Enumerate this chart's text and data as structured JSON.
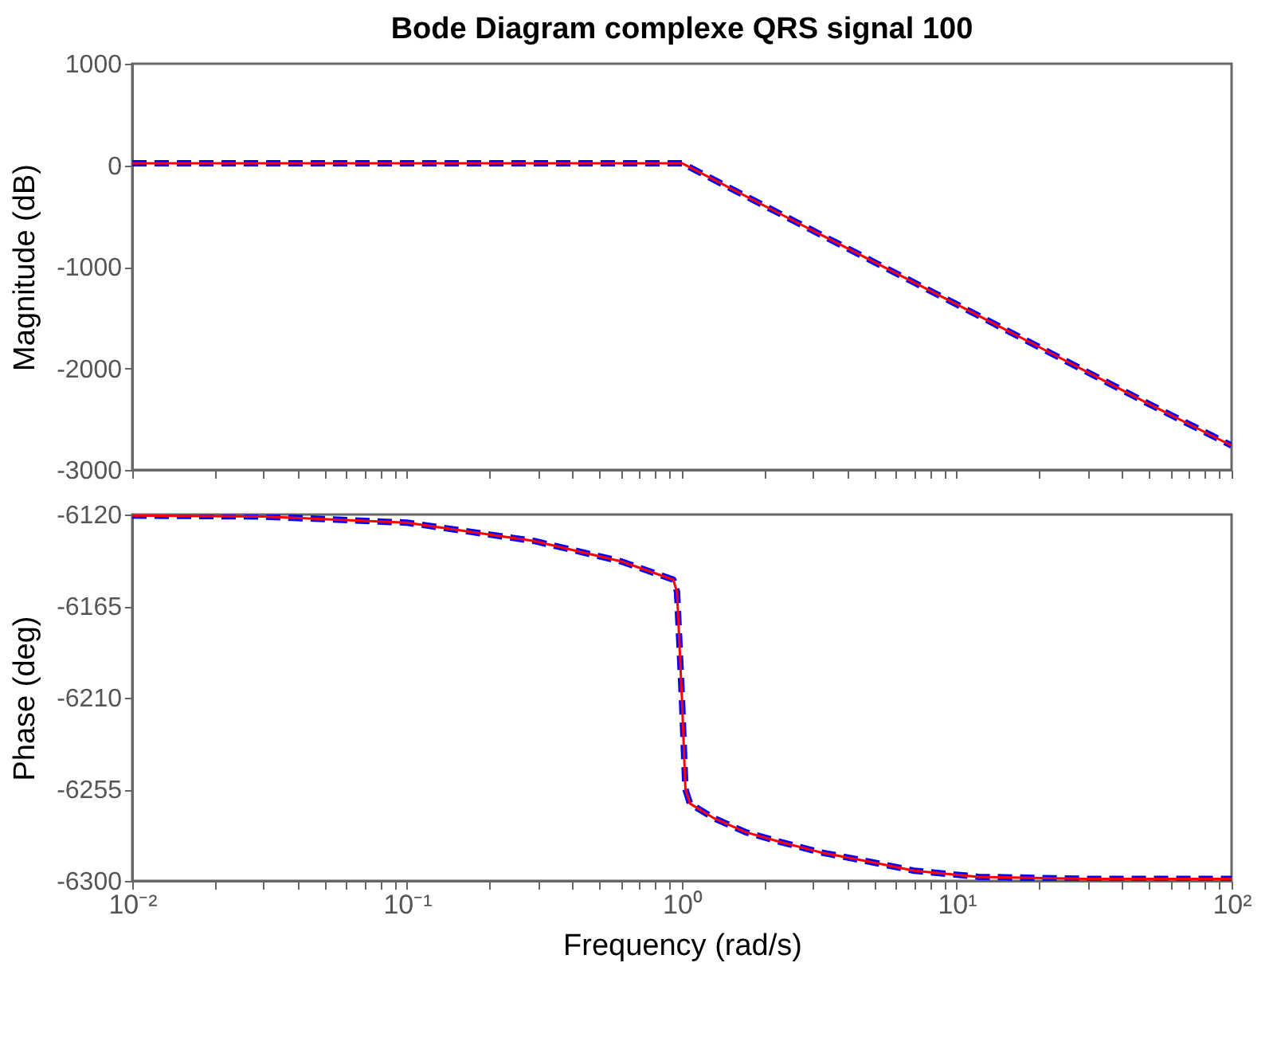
{
  "chart_data": [
    {
      "type": "line",
      "title": "Bode Diagram complexe QRS signal 100",
      "ylabel": "Magnitude (dB)",
      "log": "x",
      "tick_labels": "y",
      "xlim": [
        0.01,
        100
      ],
      "ylim": [
        -3000,
        1000
      ],
      "yticks": [
        -3000,
        -2000,
        -1000,
        0,
        1000
      ],
      "xticks": [
        {
          "value": 0.01,
          "label": null
        },
        {
          "value": 0.02,
          "label": null
        },
        {
          "value": 0.03,
          "label": null
        },
        {
          "value": 0.04,
          "label": null
        },
        {
          "value": 0.05,
          "label": null
        },
        {
          "value": 0.06,
          "label": null
        },
        {
          "value": 0.07,
          "label": null
        },
        {
          "value": 0.08,
          "label": null
        },
        {
          "value": 0.09,
          "label": null
        },
        {
          "value": 0.1,
          "label": null
        },
        {
          "value": 0.2,
          "label": null
        },
        {
          "value": 0.3,
          "label": null
        },
        {
          "value": 0.4,
          "label": null
        },
        {
          "value": 0.5,
          "label": null
        },
        {
          "value": 0.6,
          "label": null
        },
        {
          "value": 0.7,
          "label": null
        },
        {
          "value": 0.8,
          "label": null
        },
        {
          "value": 0.9,
          "label": null
        },
        {
          "value": 1,
          "label": null
        },
        {
          "value": 2,
          "label": null
        },
        {
          "value": 3,
          "label": null
        },
        {
          "value": 4,
          "label": null
        },
        {
          "value": 5,
          "label": null
        },
        {
          "value": 6,
          "label": null
        },
        {
          "value": 7,
          "label": null
        },
        {
          "value": 8,
          "label": null
        },
        {
          "value": 9,
          "label": null
        },
        {
          "value": 10,
          "label": null
        },
        {
          "value": 20,
          "label": null
        },
        {
          "value": 30,
          "label": null
        },
        {
          "value": 40,
          "label": null
        },
        {
          "value": 50,
          "label": null
        },
        {
          "value": 60,
          "label": null
        },
        {
          "value": 70,
          "label": null
        },
        {
          "value": 80,
          "label": null
        },
        {
          "value": 90,
          "label": null
        },
        {
          "value": 100,
          "label": null
        }
      ],
      "x": [
        0.01,
        0.1,
        0.5,
        1,
        2,
        10,
        50,
        100
      ],
      "series": [
        {
          "color": "#0000ff",
          "line_style": "dashed",
          "values": [
            20,
            20,
            20,
            20,
            -400,
            -1370,
            -2350,
            -2760
          ]
        },
        {
          "color": "#ff0000",
          "line_style": "solid",
          "values": [
            20,
            20,
            20,
            20,
            -400,
            -1370,
            -2350,
            -2760
          ]
        }
      ]
    },
    {
      "type": "line",
      "xlabel": "Frequency  (rad/s)",
      "ylabel": "Phase (deg)",
      "log": "x",
      "xlim": [
        0.01,
        100
      ],
      "ylim": [
        -6300,
        -6120
      ],
      "yticks": [
        -6300,
        -6255,
        -6210,
        -6165,
        -6120
      ],
      "xticks": [
        {
          "value": 0.01,
          "label": "10⁻²"
        },
        {
          "value": 0.02,
          "label": null
        },
        {
          "value": 0.03,
          "label": null
        },
        {
          "value": 0.04,
          "label": null
        },
        {
          "value": 0.05,
          "label": null
        },
        {
          "value": 0.06,
          "label": null
        },
        {
          "value": 0.07,
          "label": null
        },
        {
          "value": 0.08,
          "label": null
        },
        {
          "value": 0.09,
          "label": null
        },
        {
          "value": 0.1,
          "label": "10⁻¹"
        },
        {
          "value": 0.2,
          "label": null
        },
        {
          "value": 0.3,
          "label": null
        },
        {
          "value": 0.4,
          "label": null
        },
        {
          "value": 0.5,
          "label": null
        },
        {
          "value": 0.6,
          "label": null
        },
        {
          "value": 0.7,
          "label": null
        },
        {
          "value": 0.8,
          "label": null
        },
        {
          "value": 0.9,
          "label": null
        },
        {
          "value": 1,
          "label": "10⁰"
        },
        {
          "value": 2,
          "label": null
        },
        {
          "value": 3,
          "label": null
        },
        {
          "value": 4,
          "label": null
        },
        {
          "value": 5,
          "label": null
        },
        {
          "value": 6,
          "label": null
        },
        {
          "value": 7,
          "label": null
        },
        {
          "value": 8,
          "label": null
        },
        {
          "value": 9,
          "label": null
        },
        {
          "value": 10,
          "label": "10¹"
        },
        {
          "value": 20,
          "label": null
        },
        {
          "value": 30,
          "label": null
        },
        {
          "value": 40,
          "label": null
        },
        {
          "value": 50,
          "label": null
        },
        {
          "value": 60,
          "label": null
        },
        {
          "value": 70,
          "label": null
        },
        {
          "value": 80,
          "label": null
        },
        {
          "value": 90,
          "label": null
        },
        {
          "value": 100,
          "label": "10²"
        }
      ],
      "x": [
        0.01,
        0.03,
        0.1,
        0.29,
        0.6,
        0.93,
        0.96,
        1.0,
        1.03,
        1.07,
        1.3,
        1.7,
        2.3,
        3.2,
        5,
        7,
        12,
        30,
        100
      ],
      "series": [
        {
          "color": "#0000ff",
          "line_style": "dashed",
          "values": [
            -6120.5,
            -6121,
            -6124,
            -6133,
            -6143,
            -6152,
            -6158,
            -6210,
            -6255,
            -6262,
            -6269,
            -6276,
            -6281,
            -6286,
            -6291,
            -6295,
            -6298,
            -6299,
            -6299
          ]
        },
        {
          "color": "#ff0000",
          "line_style": "solid",
          "values": [
            -6120.5,
            -6121,
            -6124,
            -6133,
            -6143,
            -6152,
            -6158,
            -6210,
            -6255,
            -6262,
            -6269,
            -6276,
            -6281,
            -6286,
            -6291,
            -6295,
            -6298,
            -6299,
            -6299
          ]
        }
      ]
    }
  ]
}
